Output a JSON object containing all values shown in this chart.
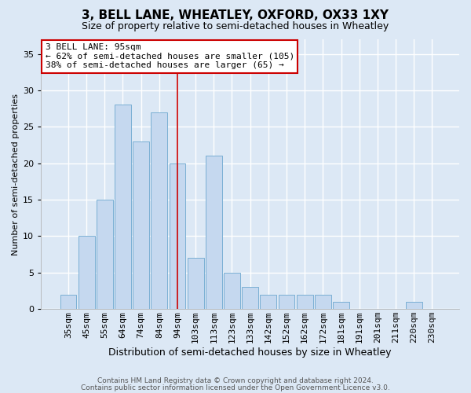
{
  "title": "3, BELL LANE, WHEATLEY, OXFORD, OX33 1XY",
  "subtitle": "Size of property relative to semi-detached houses in Wheatley",
  "xlabel": "Distribution of semi-detached houses by size in Wheatley",
  "ylabel": "Number of semi-detached properties",
  "categories": [
    "35sqm",
    "45sqm",
    "55sqm",
    "64sqm",
    "74sqm",
    "84sqm",
    "94sqm",
    "103sqm",
    "113sqm",
    "123sqm",
    "133sqm",
    "142sqm",
    "152sqm",
    "162sqm",
    "172sqm",
    "181sqm",
    "191sqm",
    "201sqm",
    "211sqm",
    "220sqm",
    "230sqm"
  ],
  "values": [
    2,
    10,
    15,
    28,
    23,
    27,
    20,
    7,
    21,
    5,
    3,
    2,
    2,
    2,
    2,
    1,
    0,
    0,
    0,
    1,
    0
  ],
  "bar_color": "#c5d8ef",
  "bar_edge_color": "#7aafd4",
  "vline_x_index": 6,
  "vline_color": "#cc0000",
  "annotation_text": "3 BELL LANE: 95sqm\n← 62% of semi-detached houses are smaller (105)\n38% of semi-detached houses are larger (65) →",
  "annotation_box_color": "#ffffff",
  "annotation_box_edge": "#cc0000",
  "ylim": [
    0,
    37
  ],
  "yticks": [
    0,
    5,
    10,
    15,
    20,
    25,
    30,
    35
  ],
  "bg_color": "#dce8f5",
  "plot_bg_color": "#dce8f5",
  "fig_bg_color": "#dce8f5",
  "grid_color": "#ffffff",
  "footer1": "Contains HM Land Registry data © Crown copyright and database right 2024.",
  "footer2": "Contains public sector information licensed under the Open Government Licence v3.0.",
  "title_fontsize": 11,
  "subtitle_fontsize": 9,
  "xlabel_fontsize": 9,
  "ylabel_fontsize": 8,
  "tick_fontsize": 8,
  "annot_fontsize": 8,
  "footer_fontsize": 6.5
}
